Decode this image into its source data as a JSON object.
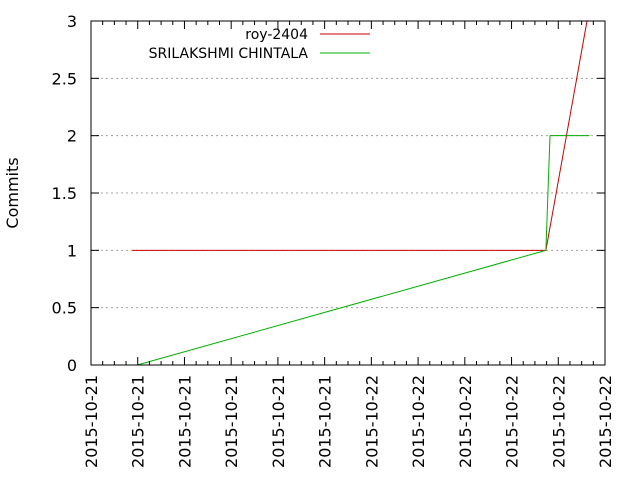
{
  "chart_data": {
    "type": "line",
    "title": "",
    "xlabel": "",
    "ylabel": "Commits",
    "ylim": [
      0,
      3
    ],
    "y_ticks": [
      "0",
      "0.5",
      "1",
      "1.5",
      "2",
      "2.5",
      "3"
    ],
    "x_tick_labels": [
      "2015-10-21",
      "2015-10-21",
      "2015-10-21",
      "2015-10-21",
      "2015-10-21",
      "2015-10-21",
      "2015-10-22",
      "2015-10-22",
      "2015-10-22",
      "2015-10-22",
      "2015-10-22",
      "2015-10-22"
    ],
    "grid": true,
    "legend": "top",
    "series": [
      {
        "name": "roy-2404",
        "color": "#cc0000",
        "points": [
          [
            0.08,
            1
          ],
          [
            0.885,
            1
          ],
          [
            0.965,
            3
          ]
        ]
      },
      {
        "name": "SRILAKSHMI CHINTALA",
        "color": "#00b000",
        "points": [
          [
            0.09,
            0
          ],
          [
            0.885,
            1
          ],
          [
            0.893,
            2
          ],
          [
            0.97,
            2
          ]
        ]
      }
    ]
  }
}
